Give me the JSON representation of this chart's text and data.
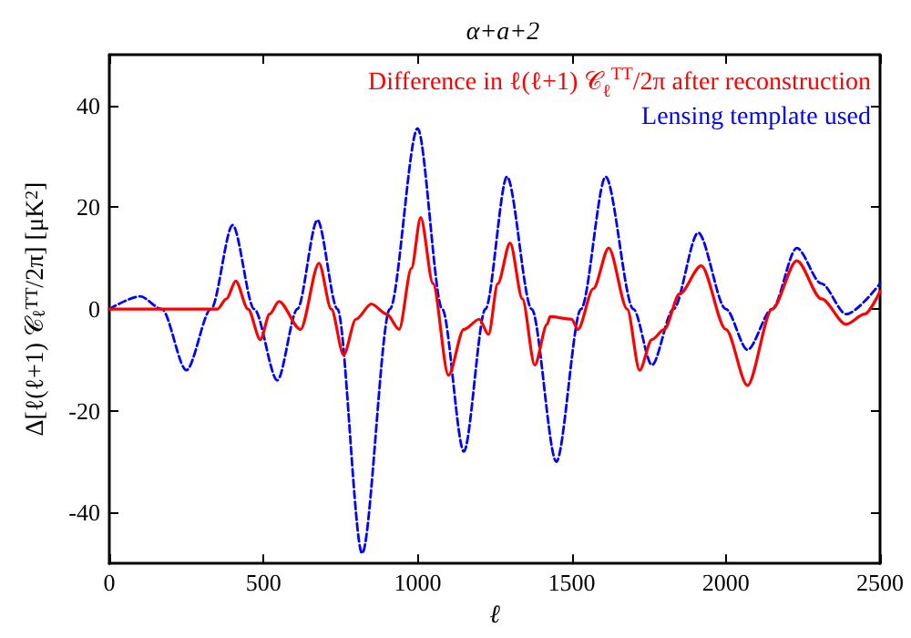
{
  "chart_data": {
    "type": "line",
    "title": "α+a+2",
    "xlabel": "ℓ",
    "ylabel": "Δ[ℓ(ℓ+1) 𝒞$_{ℓ}$$^{TT}$/2π] [μK$^{2}$]",
    "xlim": [
      0,
      2500
    ],
    "xticks": [
      0,
      500,
      1000,
      1500,
      2000,
      2500
    ],
    "ylim": [
      -50,
      50
    ],
    "yticks": [
      -40,
      -20,
      0,
      20,
      40
    ],
    "grid": false,
    "legend": "top right",
    "marker": "none",
    "series": [
      {
        "name": "Difference in ℓ(ℓ+1) 𝒞$_{ℓ}$$^{TT}$/2π after reconstruction",
        "color": "#ff0000",
        "line_style": "solid",
        "x": [
          0,
          350,
          380,
          410,
          450,
          490,
          520,
          550,
          620,
          680,
          720,
          760,
          800,
          850,
          900,
          940,
          980,
          1010,
          1050,
          1100,
          1150,
          1200,
          1230,
          1260,
          1300,
          1340,
          1380,
          1420,
          1430,
          1500,
          1520,
          1570,
          1620,
          1680,
          1720,
          1760,
          1800,
          1850,
          1920,
          2000,
          2070,
          2150,
          2230,
          2310,
          2390,
          2450,
          2500
        ],
        "values": [
          0,
          0,
          2,
          5.5,
          0,
          -6,
          -1,
          1.5,
          -4,
          9,
          0,
          -9,
          -2,
          1,
          -1,
          -4,
          8,
          18,
          5,
          -13,
          -4,
          -2,
          -5,
          5,
          13,
          2,
          -11,
          -3,
          -1.5,
          -2,
          -4,
          4,
          12,
          0,
          -12,
          -6,
          -4,
          3,
          8.5,
          -4,
          -15,
          0,
          9.5,
          2,
          -3,
          -1,
          3.5
        ]
      },
      {
        "name": "Lensing template used",
        "color": "#0000ff",
        "line_style": "dashed",
        "x": [
          0,
          100,
          170,
          250,
          330,
          400,
          470,
          545,
          610,
          675,
          740,
          820,
          910,
          1000,
          1080,
          1150,
          1220,
          1290,
          1370,
          1450,
          1530,
          1610,
          1700,
          1760,
          1830,
          1910,
          2000,
          2070,
          2150,
          2230,
          2310,
          2390,
          2500
        ],
        "values": [
          0,
          2.5,
          0,
          -12,
          0,
          16.5,
          0,
          -14,
          0,
          17.5,
          0,
          -48,
          0,
          35.5,
          0,
          -28,
          0,
          26,
          0,
          -30,
          0,
          26,
          0,
          -11,
          0,
          15,
          0,
          -8,
          0,
          12,
          5,
          -1,
          5
        ]
      }
    ]
  }
}
